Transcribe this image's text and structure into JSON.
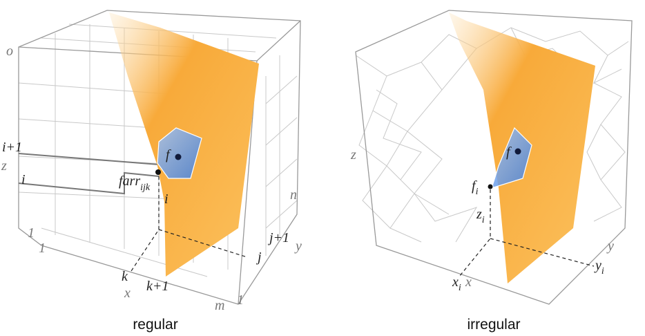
{
  "panels": [
    {
      "caption": "regular",
      "labels": [
        {
          "text": "o"
        },
        {
          "text": "i+1"
        },
        {
          "text": "z"
        },
        {
          "text": "i"
        },
        {
          "text": "1"
        },
        {
          "text": "1"
        },
        {
          "text": "farr",
          "sub": "ijk"
        },
        {
          "text": "f"
        },
        {
          "text": "i"
        },
        {
          "text": "n"
        },
        {
          "text": "j+1"
        },
        {
          "text": "y"
        },
        {
          "text": "j"
        },
        {
          "text": "k"
        },
        {
          "text": "k+1"
        },
        {
          "text": "x"
        },
        {
          "text": "m"
        },
        {
          "text": "1"
        }
      ]
    },
    {
      "caption": "irregular",
      "labels": [
        {
          "text": "z"
        },
        {
          "text": "f"
        },
        {
          "text": "f",
          "sub": "i"
        },
        {
          "text": "z",
          "sub": "i"
        },
        {
          "text": "x",
          "sub": "i"
        },
        {
          "text": "x"
        },
        {
          "text": "y"
        },
        {
          "text": "y",
          "sub": "i"
        }
      ]
    }
  ]
}
